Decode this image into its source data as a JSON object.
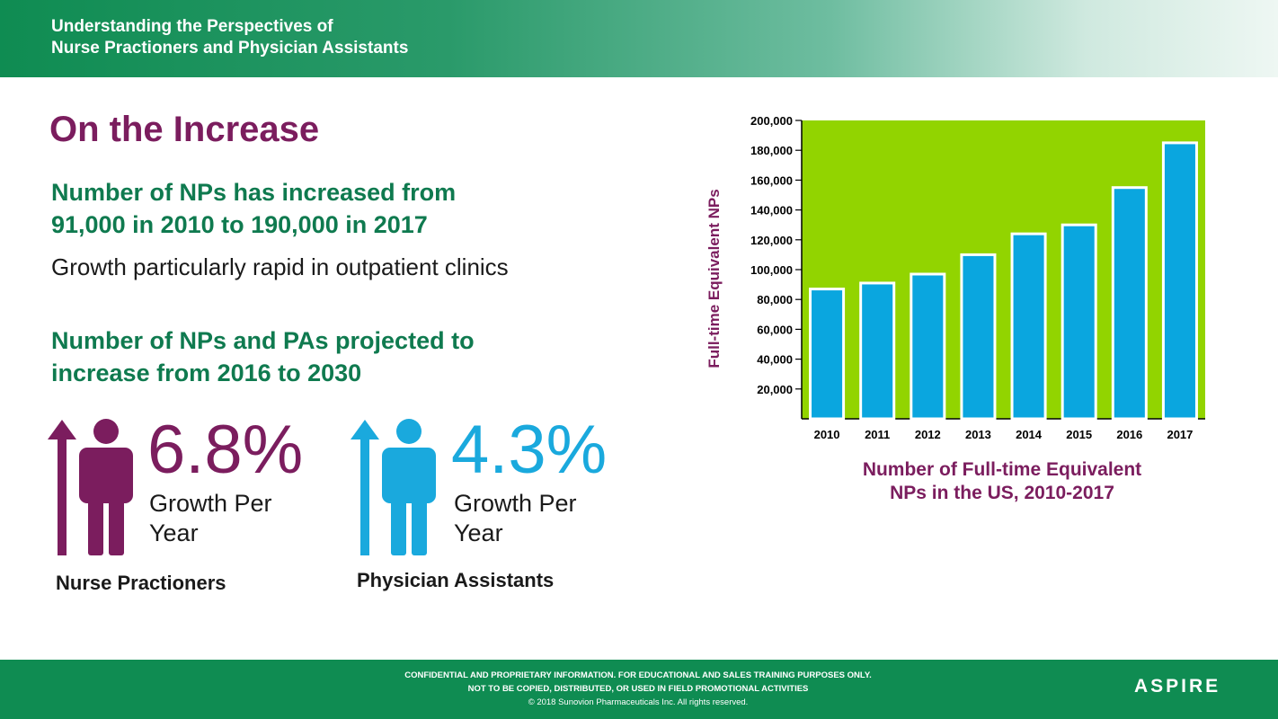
{
  "header": {
    "title_line1": "Understanding the Perspectives of",
    "title_line2": "Nurse Practioners and Physician Assistants"
  },
  "slide": {
    "title": "On the Increase",
    "stat1_line1": "Number of NPs has increased from",
    "stat1_line2": "91,000 in 2010 to 190,000 in 2017",
    "note": "Growth particularly rapid in outpatient clinics",
    "stat2_line1": "Number of NPs and PAs projected to",
    "stat2_line2": "increase from 2016 to 2030"
  },
  "infographic": {
    "np": {
      "percent": "6.8%",
      "growth_line1": "Growth Per",
      "growth_line2": "Year",
      "label": "Nurse Practioners",
      "color": "#7b1d5e"
    },
    "pa": {
      "percent": "4.3%",
      "growth_line1": "Growth Per",
      "growth_line2": "Year",
      "label": "Physician Assistants",
      "color": "#1aa9dd"
    }
  },
  "chart_title_line1": "Number of Full-time Equivalent",
  "chart_title_line2": "NPs in the US, 2010-2017",
  "chart_data": {
    "type": "bar",
    "categories": [
      "2010",
      "2011",
      "2012",
      "2013",
      "2014",
      "2015",
      "2016",
      "2017"
    ],
    "values": [
      87000,
      91000,
      97000,
      110000,
      124000,
      130000,
      155000,
      185000
    ],
    "ylabel": "Full-time Equivalent NPs",
    "ylim": [
      0,
      200000
    ],
    "yticks": [
      "20,000",
      "40,000",
      "60,000",
      "80,000",
      "100,000",
      "120,000",
      "140,000",
      "160,000",
      "180,000",
      "200,000"
    ],
    "ytick_values": [
      20000,
      40000,
      60000,
      80000,
      100000,
      120000,
      140000,
      160000,
      180000,
      200000
    ],
    "bar_color": "#0aa6df",
    "background_color": "#92d400",
    "grid": false
  },
  "footer": {
    "line1": "CONFIDENTIAL AND PROPRIETARY INFORMATION. FOR EDUCATIONAL AND SALES TRAINING PURPOSES ONLY.",
    "line2": "NOT TO BE COPIED, DISTRIBUTED, OR USED IN FIELD PROMOTIONAL ACTIVITIES",
    "copyright": "© 2018 Sunovion Pharmaceuticals Inc. All rights reserved.",
    "logo": "ASPIRE"
  }
}
